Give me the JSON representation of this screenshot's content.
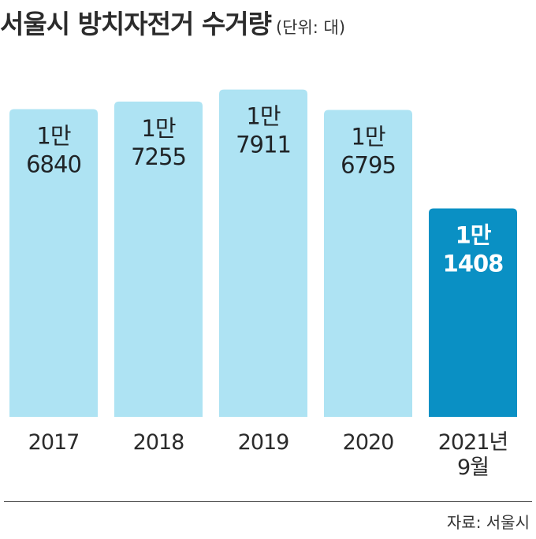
{
  "title": "서울시 방치자전거 수거량",
  "unit": "(단위: 대)",
  "source": "자료: 서울시",
  "colors": {
    "bar": "#aee3f3",
    "highlight": "#0a90c4"
  },
  "chart_data": {
    "type": "bar",
    "title": "서울시 방치자전거 수거량",
    "unit": "(단위: 대)",
    "categories": [
      "2017",
      "2018",
      "2019",
      "2020",
      "2021년 9월"
    ],
    "category_lines": [
      [
        "2017"
      ],
      [
        "2018"
      ],
      [
        "2019"
      ],
      [
        "2020"
      ],
      [
        "2021년",
        "9월"
      ]
    ],
    "values": [
      16840,
      17255,
      17911,
      16795,
      11408
    ],
    "value_labels": [
      [
        "1만",
        "6840"
      ],
      [
        "1만",
        "7255"
      ],
      [
        "1만",
        "7911"
      ],
      [
        "1만",
        "6795"
      ],
      [
        "1만",
        "1408"
      ]
    ],
    "highlight_index": 4,
    "ylim": [
      0,
      18500
    ],
    "grid": false,
    "legend": "none"
  }
}
